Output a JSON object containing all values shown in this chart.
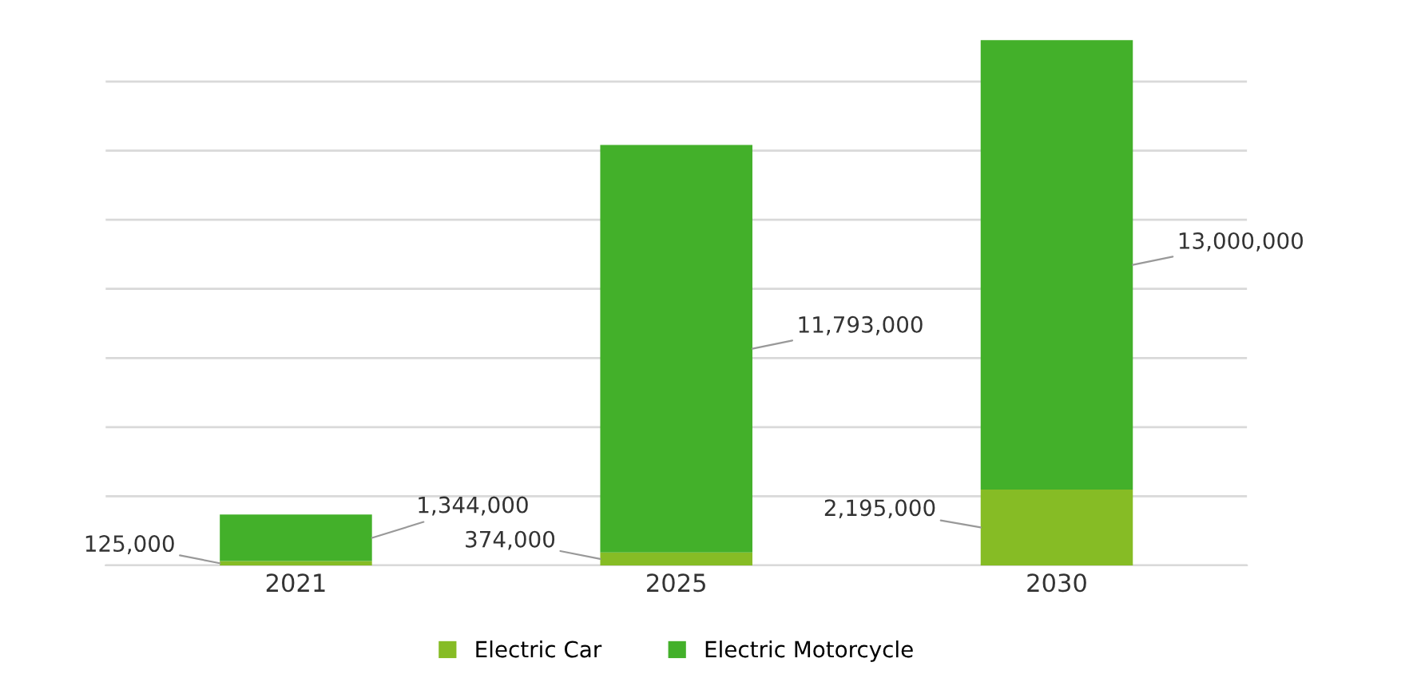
{
  "chart_data": {
    "type": "bar",
    "stacked": true,
    "categories": [
      "2021",
      "2025",
      "2030"
    ],
    "series": [
      {
        "name": "Electric Car",
        "color": "#86bc25",
        "values": [
          125000,
          374000,
          2195000
        ],
        "value_labels": [
          "125,000",
          "374,000",
          "2,195,000"
        ]
      },
      {
        "name": "Electric Motorcycle",
        "color": "#43b02a",
        "values": [
          1344000,
          11793000,
          13000000
        ],
        "value_labels": [
          "1,344,000",
          "11,793,000",
          "13,000,000"
        ]
      }
    ],
    "tick_labels": "x",
    "grid": "y",
    "legend": "bottom"
  }
}
